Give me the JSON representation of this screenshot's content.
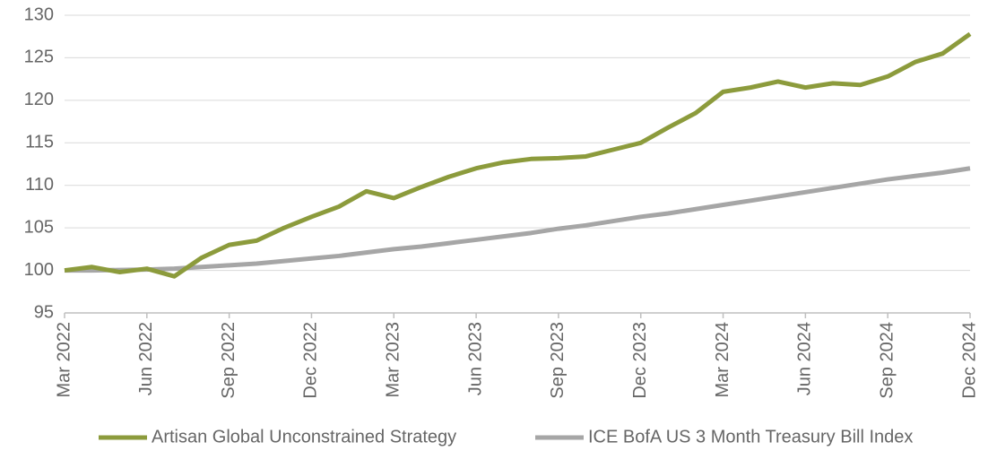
{
  "chart_data": {
    "type": "line",
    "categories": [
      "Mar 2022",
      null,
      null,
      "Jun 2022",
      null,
      null,
      "Sep 2022",
      null,
      null,
      "Dec 2022",
      null,
      null,
      "Mar 2023",
      null,
      null,
      "Jun 2023",
      null,
      null,
      "Sep 2023",
      null,
      null,
      "Dec 2023",
      null,
      null,
      "Mar 2024",
      null,
      null,
      "Jun 2024",
      null,
      null,
      "Sep 2024",
      null,
      null,
      "Dec 2024"
    ],
    "series": [
      {
        "name": "Artisan Global Unconstrained Strategy",
        "color": "#8c9b3c",
        "values": [
          100,
          100.4,
          99.8,
          100.2,
          99.3,
          101.5,
          103,
          103.5,
          105,
          106.3,
          107.5,
          109.3,
          108.5,
          109.8,
          111,
          112,
          112.7,
          113.1,
          113.2,
          113.4,
          114.2,
          115,
          116.8,
          118.5,
          121,
          121.5,
          122.2,
          121.5,
          122,
          121.8,
          122.8,
          124.5,
          125.5,
          127.8
        ]
      },
      {
        "name": "ICE BofA US 3 Month Treasury Bill Index",
        "color": "#a6a6a6",
        "values": [
          100,
          100,
          100.05,
          100.1,
          100.2,
          100.4,
          100.6,
          100.8,
          101.1,
          101.4,
          101.7,
          102.1,
          102.5,
          102.8,
          103.2,
          103.6,
          104.0,
          104.4,
          104.9,
          105.3,
          105.8,
          106.3,
          106.7,
          107.2,
          107.7,
          108.2,
          108.7,
          109.2,
          109.7,
          110.2,
          110.7,
          111.1,
          111.5,
          112
        ]
      }
    ],
    "ylim": [
      95,
      130
    ],
    "yticks": [
      95,
      100,
      105,
      110,
      115,
      120,
      125,
      130
    ],
    "grid": true,
    "legend": "bottom"
  }
}
